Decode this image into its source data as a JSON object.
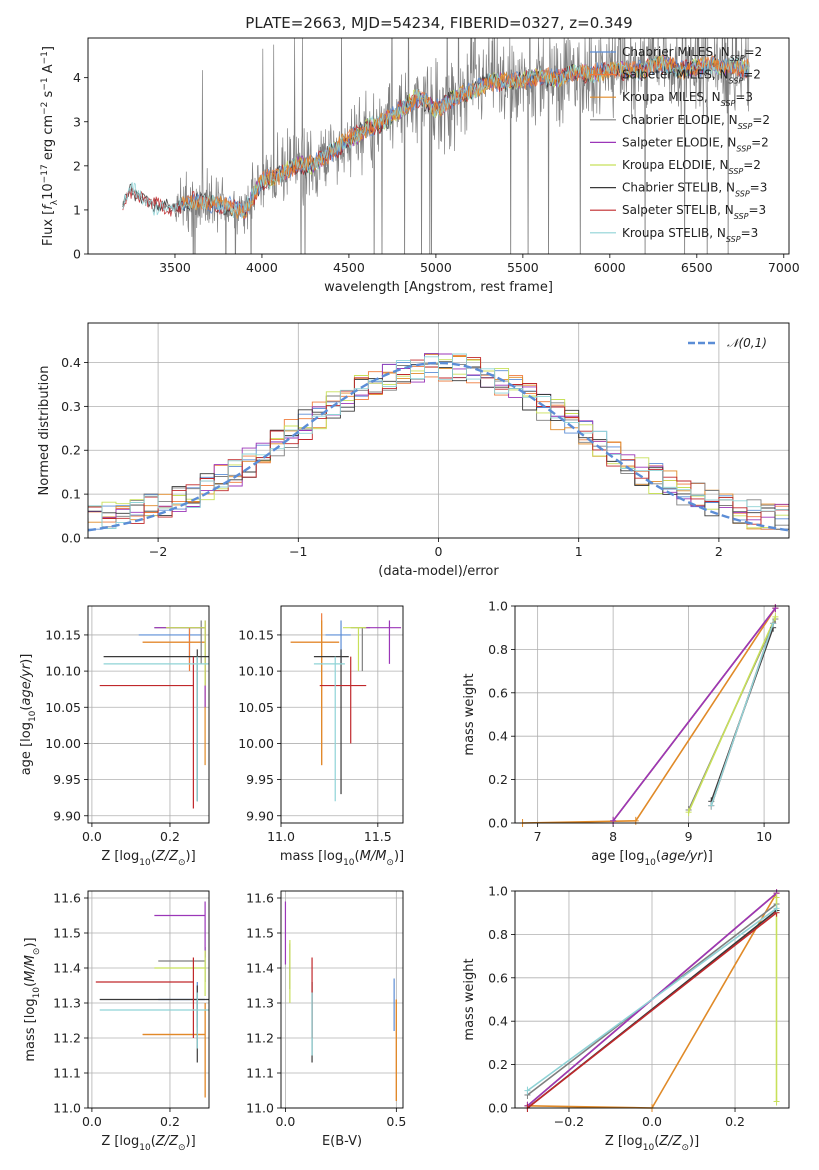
{
  "title": "PLATE=2663, MJD=54234, FIBERID=0327, z=0.349",
  "palette": {
    "Chabrier MILES": "#5b8dd6",
    "Salpeter MILES": "#ef7b3c",
    "Kroupa MILES": "#e08a28",
    "Chabrier ELODIE": "#7f7f7f",
    "Salpeter ELODIE": "#9b36b8",
    "Kroupa ELODIE": "#c8e05a",
    "Chabrier STELIB": "#3a3a3a",
    "Salpeter STELIB": "#c0282b",
    "Kroupa STELIB": "#8fd3d6",
    "normal_curve": "#5b8dd6",
    "spectrum_data": "#7f7f7f"
  },
  "chart_data": [
    {
      "id": "spectrum",
      "type": "line",
      "xlabel": "wavelength [Angstrom, rest frame]",
      "ylabel": "Flux [f_λ10^-17 erg cm^-2 s^-1 A^-1]",
      "xlim": [
        3000,
        7030
      ],
      "ylim": [
        0,
        4.9
      ],
      "xticks": [
        3500,
        4000,
        4500,
        5000,
        5500,
        6000,
        6500,
        7000
      ],
      "yticks": [
        0,
        1,
        2,
        3,
        4
      ],
      "grid": false,
      "legend_position": "top-right",
      "legend": [
        {
          "label": "Chabrier MILES, N_SSP=2",
          "series": "Chabrier MILES"
        },
        {
          "label": "Salpeter MILES, N_SSP=2",
          "series": "Salpeter MILES"
        },
        {
          "label": "Kroupa MILES, N_SSP=3",
          "series": "Kroupa MILES"
        },
        {
          "label": "Chabrier ELODIE, N_SSP=2",
          "series": "Chabrier ELODIE"
        },
        {
          "label": "Salpeter ELODIE, N_SSP=2",
          "series": "Salpeter ELODIE"
        },
        {
          "label": "Kroupa ELODIE, N_SSP=2",
          "series": "Kroupa ELODIE"
        },
        {
          "label": "Chabrier STELIB, N_SSP=3",
          "series": "Chabrier STELIB"
        },
        {
          "label": "Salpeter STELIB, N_SSP=3",
          "series": "Salpeter STELIB"
        },
        {
          "label": "Kroupa STELIB, N_SSP=3",
          "series": "Kroupa STELIB"
        }
      ],
      "continuum": {
        "x": [
          3200,
          3250,
          3300,
          3400,
          3500,
          3600,
          3700,
          3800,
          3900,
          4000,
          4100,
          4200,
          4300,
          4400,
          4500,
          4600,
          4700,
          4800,
          4900,
          5000,
          5100,
          5200,
          5300,
          5400,
          5500,
          5600,
          5700,
          5800,
          5900,
          6000,
          6100,
          6200,
          6300,
          6400,
          6500,
          6600,
          6700,
          6800
        ],
        "y": [
          1.1,
          1.45,
          1.3,
          1.05,
          1.05,
          1.2,
          1.15,
          1.1,
          0.95,
          1.65,
          1.8,
          2.0,
          2.05,
          2.3,
          2.6,
          2.85,
          3.0,
          3.3,
          3.55,
          3.3,
          3.5,
          3.7,
          3.9,
          3.9,
          3.95,
          4.0,
          4.0,
          4.1,
          4.1,
          4.2,
          4.15,
          4.2,
          4.3,
          4.2,
          4.2,
          4.3,
          4.25,
          4.2
        ]
      }
    },
    {
      "id": "residuals",
      "type": "line",
      "xlabel": "(data-model)/error",
      "ylabel": "Normed distribution",
      "xlim": [
        -2.5,
        2.5
      ],
      "ylim": [
        0,
        0.49
      ],
      "xticks": [
        -2,
        -1,
        0,
        1,
        2
      ],
      "yticks": [
        0.0,
        0.1,
        0.2,
        0.3,
        0.4
      ],
      "grid": true,
      "legend_position": "top-right",
      "legend": [
        {
          "label": "𝒩(0,1)",
          "series": "normal_curve"
        }
      ],
      "curve": "normal pdf, mean 0, sigma 1",
      "bin_width": 0.1,
      "histogram_shape": "approximately normal, peak ~0.40 near 0, slightly higher tails than N(0,1)"
    },
    {
      "id": "age_vs_Z",
      "type": "scatter",
      "xlabel": "Z [log10(Z/Z⊙)]",
      "ylabel": "age [log10(age/yr)]",
      "xlim": [
        -0.01,
        0.3
      ],
      "ylim": [
        9.89,
        10.19
      ],
      "xticks": [
        0.0,
        0.2
      ],
      "yticks": [
        9.9,
        9.95,
        10.0,
        10.05,
        10.1,
        10.15
      ],
      "grid": true,
      "points": [
        {
          "series": "Chabrier MILES",
          "x": 0.25,
          "y": 10.15,
          "xerr": [
            0.13,
            0.03
          ],
          "yerr": [
            0.04,
            0.01
          ]
        },
        {
          "series": "Salpeter MILES",
          "x": 0.25,
          "y": 10.14,
          "xerr": [
            0.12,
            0.04
          ],
          "yerr": [
            0.04,
            0.02
          ]
        },
        {
          "series": "Kroupa MILES",
          "x": 0.29,
          "y": 10.14,
          "xerr": [
            0.16,
            0.0
          ],
          "yerr": [
            0.17,
            0.03
          ]
        },
        {
          "series": "Chabrier ELODIE",
          "x": 0.28,
          "y": 10.16,
          "xerr": [
            0.12,
            0.01
          ],
          "yerr": [
            0.05,
            0.01
          ]
        },
        {
          "series": "Salpeter ELODIE",
          "x": 0.29,
          "y": 10.16,
          "xerr": [
            0.13,
            0.0
          ],
          "yerr": [
            0.11,
            0.01
          ]
        },
        {
          "series": "Kroupa ELODIE",
          "x": 0.29,
          "y": 10.16,
          "xerr": [
            0.1,
            0.0
          ],
          "yerr": [
            0.08,
            0.01
          ]
        },
        {
          "series": "Chabrier STELIB",
          "x": 0.27,
          "y": 10.12,
          "xerr": [
            0.24,
            0.03
          ],
          "yerr": [
            0.2,
            0.01
          ]
        },
        {
          "series": "Salpeter STELIB",
          "x": 0.26,
          "y": 10.08,
          "xerr": [
            0.24,
            0.0
          ],
          "yerr": [
            0.17,
            0.04
          ]
        },
        {
          "series": "Kroupa STELIB",
          "x": 0.27,
          "y": 10.11,
          "xerr": [
            0.24,
            0.03
          ],
          "yerr": [
            0.19,
            0.01
          ]
        }
      ]
    },
    {
      "id": "age_vs_mass",
      "type": "scatter",
      "xlabel": "mass [log10(M/M⊙)]",
      "ylabel": "",
      "xlim": [
        11.0,
        11.63
      ],
      "ylim": [
        9.89,
        10.19
      ],
      "xticks": [
        11.0,
        11.5
      ],
      "yticks": [
        9.9,
        9.95,
        10.0,
        10.05,
        10.1,
        10.15
      ],
      "grid": true,
      "points": [
        {
          "series": "Chabrier MILES",
          "x": 11.31,
          "y": 10.15,
          "xerr": [
            0.08,
            0.05
          ],
          "yerr": [
            0.04,
            0.02
          ]
        },
        {
          "series": "Salpeter MILES",
          "x": 11.21,
          "y": 10.14,
          "xerr": [
            0.16,
            0.09
          ],
          "yerr": [
            0.17,
            0.04
          ]
        },
        {
          "series": "Kroupa MILES",
          "x": 11.21,
          "y": 10.14,
          "xerr": [
            0.16,
            0.09
          ],
          "yerr": [
            0.17,
            0.03
          ]
        },
        {
          "series": "Chabrier ELODIE",
          "x": 11.42,
          "y": 10.16,
          "xerr": [
            0.06,
            0.04
          ],
          "yerr": [
            0.06,
            0.0
          ]
        },
        {
          "series": "Salpeter ELODIE",
          "x": 11.56,
          "y": 10.16,
          "xerr": [
            0.13,
            0.06
          ],
          "yerr": [
            0.05,
            0.01
          ]
        },
        {
          "series": "Kroupa ELODIE",
          "x": 11.4,
          "y": 10.16,
          "xerr": [
            0.08,
            0.04
          ],
          "yerr": [
            0.06,
            0.0
          ]
        },
        {
          "series": "Chabrier STELIB",
          "x": 11.31,
          "y": 10.12,
          "xerr": [
            0.14,
            0.04
          ],
          "yerr": [
            0.19,
            0.01
          ]
        },
        {
          "series": "Salpeter STELIB",
          "x": 11.36,
          "y": 10.08,
          "xerr": [
            0.16,
            0.08
          ],
          "yerr": [
            0.08,
            0.04
          ]
        },
        {
          "series": "Kroupa STELIB",
          "x": 11.28,
          "y": 10.11,
          "xerr": [
            0.11,
            0.05
          ],
          "yerr": [
            0.19,
            0.01
          ]
        }
      ]
    },
    {
      "id": "weight_vs_age",
      "type": "line",
      "xlabel": "age [log10(age/yr)]",
      "ylabel": "mass weight",
      "xlim": [
        6.7,
        10.33
      ],
      "ylim": [
        0,
        1.0
      ],
      "xticks": [
        7,
        8,
        9,
        10
      ],
      "yticks": [
        0.0,
        0.2,
        0.4,
        0.6,
        0.8,
        1.0
      ],
      "grid": true,
      "series": [
        {
          "series": "Chabrier MILES",
          "x": [
            8.0,
            10.15
          ],
          "y": [
            0.01,
            0.99
          ]
        },
        {
          "series": "Salpeter MILES",
          "x": [
            8.0,
            10.15
          ],
          "y": [
            0.01,
            0.99
          ]
        },
        {
          "series": "Kroupa MILES",
          "x": [
            6.8,
            8.3,
            10.15
          ],
          "y": [
            0.0,
            0.01,
            0.99
          ]
        },
        {
          "series": "Chabrier ELODIE",
          "x": [
            9.0,
            10.15
          ],
          "y": [
            0.06,
            0.94
          ]
        },
        {
          "series": "Salpeter ELODIE",
          "x": [
            8.0,
            10.15
          ],
          "y": [
            0.01,
            0.99
          ]
        },
        {
          "series": "Kroupa ELODIE",
          "x": [
            9.0,
            10.15
          ],
          "y": [
            0.05,
            0.95
          ]
        },
        {
          "series": "Chabrier STELIB",
          "x": [
            9.3,
            10.12
          ],
          "y": [
            0.1,
            0.9
          ]
        },
        {
          "series": "Salpeter STELIB",
          "x": [
            9.3,
            10.12
          ],
          "y": [
            0.08,
            0.92
          ]
        },
        {
          "series": "Kroupa STELIB",
          "x": [
            9.3,
            10.12
          ],
          "y": [
            0.08,
            0.92
          ]
        }
      ]
    },
    {
      "id": "mass_vs_Z",
      "type": "scatter",
      "xlabel": "Z [log10(Z/Z⊙)]",
      "ylabel": "mass [log10(M/M⊙)]",
      "xlim": [
        -0.01,
        0.3
      ],
      "ylim": [
        11.0,
        11.62
      ],
      "xticks": [
        0.0,
        0.2
      ],
      "yticks": [
        11.0,
        11.1,
        11.2,
        11.3,
        11.4,
        11.5,
        11.6
      ],
      "grid": true,
      "points": [
        {
          "series": "Chabrier MILES",
          "x": 0.27,
          "y": 11.31,
          "xerr": [
            0.1,
            0.02
          ],
          "yerr": [
            0.08,
            0.05
          ]
        },
        {
          "series": "Salpeter MILES",
          "x": 0.29,
          "y": 11.21,
          "xerr": [
            0.16,
            0.0
          ],
          "yerr": [
            0.18,
            0.09
          ]
        },
        {
          "series": "Kroupa MILES",
          "x": 0.29,
          "y": 11.21,
          "xerr": [
            0.16,
            0.0
          ],
          "yerr": [
            0.18,
            0.09
          ]
        },
        {
          "series": "Chabrier ELODIE",
          "x": 0.29,
          "y": 11.42,
          "xerr": [
            0.12,
            0.0
          ],
          "yerr": [
            0.06,
            0.04
          ]
        },
        {
          "series": "Salpeter ELODIE",
          "x": 0.29,
          "y": 11.55,
          "xerr": [
            0.13,
            0.0
          ],
          "yerr": [
            0.12,
            0.04
          ]
        },
        {
          "series": "Kroupa ELODIE",
          "x": 0.29,
          "y": 11.4,
          "xerr": [
            0.13,
            0.0
          ],
          "yerr": [
            0.08,
            0.05
          ]
        },
        {
          "series": "Chabrier STELIB",
          "x": 0.27,
          "y": 11.31,
          "xerr": [
            0.25,
            0.03
          ],
          "yerr": [
            0.18,
            0.04
          ]
        },
        {
          "series": "Salpeter STELIB",
          "x": 0.26,
          "y": 11.36,
          "xerr": [
            0.25,
            0.0
          ],
          "yerr": [
            0.16,
            0.07
          ]
        },
        {
          "series": "Kroupa STELIB",
          "x": 0.27,
          "y": 11.28,
          "xerr": [
            0.25,
            0.03
          ],
          "yerr": [
            0.11,
            0.05
          ]
        }
      ]
    },
    {
      "id": "mass_vs_EBV",
      "type": "scatter",
      "xlabel": "E(B-V)",
      "ylabel": "",
      "xlim": [
        -0.02,
        0.53
      ],
      "ylim": [
        11.0,
        11.62
      ],
      "xticks": [
        0.0,
        0.5
      ],
      "yticks": [
        11.0,
        11.1,
        11.2,
        11.3,
        11.4,
        11.5,
        11.6
      ],
      "grid": true,
      "points": [
        {
          "series": "Chabrier MILES",
          "x": 0.49,
          "y": 11.31,
          "xerr": [
            0.0,
            0.0
          ],
          "yerr": [
            0.09,
            0.06
          ]
        },
        {
          "series": "Salpeter MILES",
          "x": 0.5,
          "y": 11.21,
          "xerr": [
            0.0,
            0.0
          ],
          "yerr": [
            0.19,
            0.1
          ]
        },
        {
          "series": "Kroupa MILES",
          "x": 0.5,
          "y": 11.21,
          "xerr": [
            0.0,
            0.0
          ],
          "yerr": [
            0.19,
            0.1
          ]
        },
        {
          "series": "Chabrier ELODIE",
          "x": 0.02,
          "y": 11.42,
          "xerr": [
            0.0,
            0.0
          ],
          "yerr": [
            0.08,
            0.05
          ]
        },
        {
          "series": "Salpeter ELODIE",
          "x": 0.0,
          "y": 11.55,
          "xerr": [
            0.0,
            0.0
          ],
          "yerr": [
            0.14,
            0.04
          ]
        },
        {
          "series": "Kroupa ELODIE",
          "x": 0.02,
          "y": 11.4,
          "xerr": [
            0.0,
            0.0
          ],
          "yerr": [
            0.1,
            0.08
          ]
        },
        {
          "series": "Chabrier STELIB",
          "x": 0.12,
          "y": 11.31,
          "xerr": [
            0.0,
            0.0
          ],
          "yerr": [
            0.18,
            0.05
          ]
        },
        {
          "series": "Salpeter STELIB",
          "x": 0.12,
          "y": 11.36,
          "xerr": [
            0.0,
            0.0
          ],
          "yerr": [
            0.16,
            0.07
          ]
        },
        {
          "series": "Kroupa STELIB",
          "x": 0.12,
          "y": 11.28,
          "xerr": [
            0.0,
            0.0
          ],
          "yerr": [
            0.13,
            0.05
          ]
        }
      ]
    },
    {
      "id": "weight_vs_Z",
      "type": "line",
      "xlabel": "Z [log10(Z/Z⊙)]",
      "ylabel": "mass weight",
      "xlim": [
        -0.33,
        0.33
      ],
      "ylim": [
        0,
        1.0
      ],
      "xticks": [
        -0.2,
        0.0,
        0.2
      ],
      "yticks": [
        0.0,
        0.2,
        0.4,
        0.6,
        0.8,
        1.0
      ],
      "grid": true,
      "series": [
        {
          "series": "Chabrier MILES",
          "x": [
            -0.3,
            0.3
          ],
          "y": [
            0.01,
            0.99
          ]
        },
        {
          "series": "Salpeter MILES",
          "x": [
            -0.3,
            0.3
          ],
          "y": [
            0.01,
            0.99
          ]
        },
        {
          "series": "Kroupa MILES",
          "x": [
            -0.3,
            0.0,
            0.3
          ],
          "y": [
            0.01,
            0.0,
            0.99
          ]
        },
        {
          "series": "Chabrier ELODIE",
          "x": [
            -0.3,
            0.3
          ],
          "y": [
            0.06,
            0.94
          ]
        },
        {
          "series": "Salpeter ELODIE",
          "x": [
            -0.3,
            0.3
          ],
          "y": [
            0.01,
            0.99
          ]
        },
        {
          "series": "Kroupa ELODIE",
          "x": [
            0.3,
            0.3
          ],
          "y": [
            0.03,
            0.97
          ]
        },
        {
          "series": "Chabrier STELIB",
          "x": [
            -0.3,
            0.3
          ],
          "y": [
            0.0,
            0.91
          ]
        },
        {
          "series": "Salpeter STELIB",
          "x": [
            -0.3,
            0.3
          ],
          "y": [
            0.0,
            0.9
          ]
        },
        {
          "series": "Kroupa STELIB",
          "x": [
            -0.3,
            0.3
          ],
          "y": [
            0.08,
            0.92
          ]
        }
      ]
    }
  ]
}
